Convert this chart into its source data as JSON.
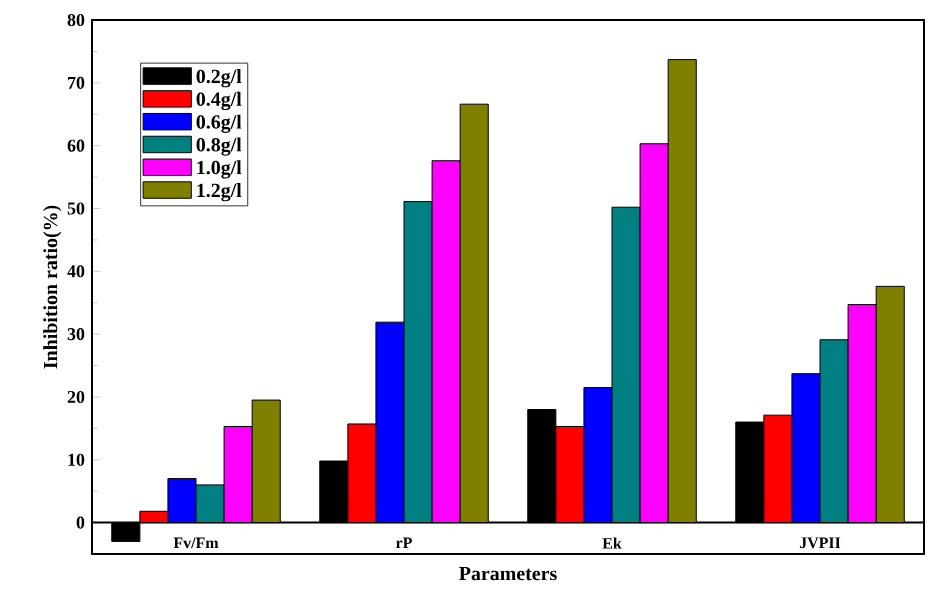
{
  "chart_data": {
    "type": "bar",
    "xlabel": "Parameters",
    "ylabel": "Inhibition ratio(%)",
    "categories": [
      "Fv/Fm",
      "rP",
      "Ek",
      "JVPII"
    ],
    "series": [
      {
        "name": "0.2g/l",
        "color": "#000000",
        "values": [
          -3,
          9.8,
          18.0,
          16.0
        ]
      },
      {
        "name": "0.4g/l",
        "color": "#ff0000",
        "values": [
          1.8,
          15.7,
          15.3,
          17.1
        ]
      },
      {
        "name": "0.6g/l",
        "color": "#0000ff",
        "values": [
          7.0,
          31.9,
          21.5,
          23.7
        ]
      },
      {
        "name": "0.8g/l",
        "color": "#008080",
        "values": [
          6.0,
          51.1,
          50.2,
          29.1
        ]
      },
      {
        "name": "1.0g/l",
        "color": "#ff00ff",
        "values": [
          15.3,
          57.6,
          60.3,
          34.7
        ]
      },
      {
        "name": "1.2g/l",
        "color": "#808000",
        "values": [
          19.5,
          66.6,
          73.7,
          37.6
        ]
      }
    ],
    "ylim": [
      -5,
      80
    ],
    "yticks": [
      0,
      10,
      20,
      30,
      40,
      50,
      60,
      70,
      80
    ],
    "legend": "top left",
    "grid": false
  }
}
